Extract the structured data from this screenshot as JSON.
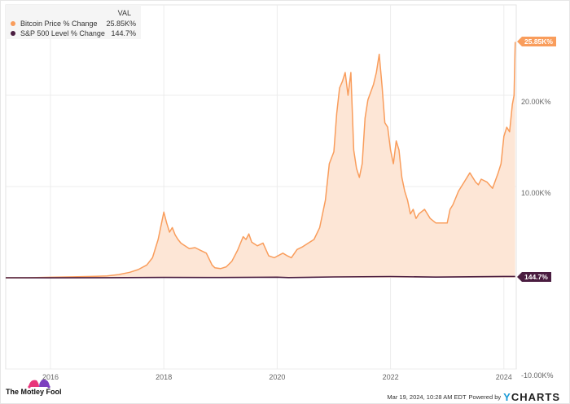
{
  "chart_data": {
    "type": "area",
    "title": "",
    "xlabel": "",
    "ylabel": "",
    "ylim": [
      -10000,
      26500
    ],
    "y_ticks": [
      {
        "value": 20000,
        "label": "20.00K%"
      },
      {
        "value": 10000,
        "label": "10.00K%"
      },
      {
        "value": -10000,
        "label": "-10.00K%"
      }
    ],
    "x_ticks": [
      {
        "value": 2016,
        "label": "2016"
      },
      {
        "value": 2018,
        "label": "2018"
      },
      {
        "value": 2020,
        "label": "2020"
      },
      {
        "value": 2022,
        "label": "2022"
      },
      {
        "value": 2024,
        "label": "2024"
      }
    ],
    "xlim": [
      2015.2,
      2024.2
    ],
    "grid": true,
    "legend_position": "top-left",
    "legend_header": "VAL",
    "series": [
      {
        "name": "Bitcoin Price % Change",
        "value_label": "25.85K%",
        "color": "#f99d5c",
        "fill": "#fde6d6",
        "x": [
          2015.2,
          2015.6,
          2016.0,
          2016.4,
          2016.8,
          2017.0,
          2017.2,
          2017.4,
          2017.55,
          2017.7,
          2017.8,
          2017.9,
          2017.96,
          2018.0,
          2018.05,
          2018.1,
          2018.15,
          2018.2,
          2018.25,
          2018.3,
          2018.35,
          2018.45,
          2018.55,
          2018.65,
          2018.75,
          2018.85,
          2018.9,
          2019.0,
          2019.1,
          2019.2,
          2019.3,
          2019.4,
          2019.45,
          2019.5,
          2019.55,
          2019.65,
          2019.75,
          2019.85,
          2019.95,
          2020.1,
          2020.18,
          2020.25,
          2020.35,
          2020.45,
          2020.55,
          2020.65,
          2020.75,
          2020.85,
          2020.92,
          2021.0,
          2021.05,
          2021.1,
          2021.15,
          2021.2,
          2021.25,
          2021.3,
          2021.35,
          2021.4,
          2021.45,
          2021.5,
          2021.55,
          2021.6,
          2021.7,
          2021.75,
          2021.8,
          2021.85,
          2021.9,
          2021.95,
          2022.0,
          2022.05,
          2022.1,
          2022.15,
          2022.2,
          2022.25,
          2022.3,
          2022.35,
          2022.4,
          2022.45,
          2022.5,
          2022.6,
          2022.7,
          2022.8,
          2022.9,
          2023.0,
          2023.05,
          2023.1,
          2023.2,
          2023.3,
          2023.4,
          2023.5,
          2023.55,
          2023.6,
          2023.7,
          2023.8,
          2023.9,
          2023.95,
          2024.0,
          2024.05,
          2024.1,
          2024.15,
          2024.18,
          2024.2
        ],
        "values": [
          0,
          0,
          50,
          100,
          150,
          200,
          350,
          600,
          900,
          1400,
          2200,
          4200,
          6000,
          7200,
          6000,
          5000,
          5500,
          4700,
          4200,
          3800,
          3600,
          3200,
          3300,
          3000,
          2700,
          1400,
          1100,
          1000,
          1200,
          1800,
          3000,
          4500,
          4200,
          4800,
          3900,
          3500,
          3800,
          2400,
          2200,
          2700,
          2400,
          2200,
          3100,
          3400,
          3800,
          4200,
          5500,
          8500,
          12500,
          13800,
          18000,
          20800,
          21500,
          22500,
          20000,
          22500,
          14000,
          12000,
          11000,
          12500,
          17500,
          19500,
          21200,
          22500,
          24500,
          21000,
          17000,
          16500,
          14000,
          12500,
          15000,
          14000,
          11000,
          9500,
          8500,
          7000,
          7500,
          6500,
          7000,
          7500,
          6500,
          6000,
          6000,
          6000,
          7500,
          8000,
          9500,
          10500,
          11500,
          10500,
          10200,
          10800,
          10500,
          9800,
          11500,
          12500,
          15500,
          16500,
          16000,
          19000,
          20000,
          25850
        ]
      },
      {
        "name": "S&P 500 Level % Change",
        "value_label": "144.7%",
        "color": "#4a1d40",
        "x": [
          2015.2,
          2016.0,
          2017.0,
          2018.0,
          2019.0,
          2020.0,
          2020.2,
          2021.0,
          2022.0,
          2022.8,
          2023.0,
          2024.0,
          2024.2
        ],
        "values": [
          0,
          -10,
          10,
          40,
          30,
          60,
          20,
          90,
          130,
          70,
          80,
          140,
          144.7
        ]
      }
    ]
  },
  "legend": {
    "header": "VAL",
    "items": [
      {
        "label": "Bitcoin Price % Change",
        "value": "25.85K%",
        "color": "#f99d5c"
      },
      {
        "label": "S&P 500 Level % Change",
        "value": "144.7%",
        "color": "#4a1d40"
      }
    ]
  },
  "tags": {
    "bitcoin": "25.85K%",
    "sp500": "144.7%"
  },
  "footer": {
    "brand": "The Motley Fool",
    "timestamp": "Mar 19, 2024, 10:28 AM EDT",
    "powered_by": "Powered by",
    "provider_y": "Y",
    "provider_rest": "CHARTS"
  }
}
